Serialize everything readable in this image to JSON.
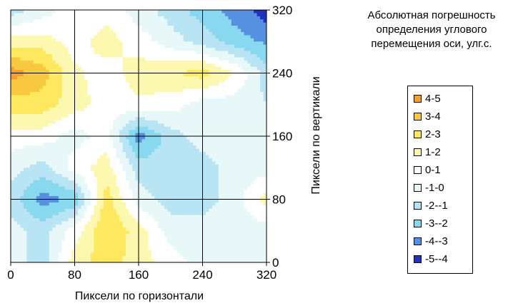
{
  "chart_data": {
    "type": "heatmap",
    "subtype": "contour",
    "title": "Абсолютная погрешность определения углового перемещения оси, улг.с.",
    "xlabel": "Пиксели  по горизонтали",
    "ylabel": "Пиксели  по вертикали",
    "x": [
      0,
      40,
      80,
      120,
      160,
      200,
      240,
      280,
      320
    ],
    "y": [
      0,
      40,
      80,
      120,
      160,
      200,
      240,
      280,
      320
    ],
    "x_ticks": [
      "0",
      "80",
      "160",
      "240",
      "320"
    ],
    "y_ticks": [
      "0",
      "80",
      "160",
      "240",
      "320"
    ],
    "xlim": [
      0,
      320
    ],
    "ylim": [
      0,
      320
    ],
    "grid": true,
    "legend_position": "right",
    "z_rows_top_to_bottom": [
      [
        -1.5,
        -0.5,
        0.5,
        0.5,
        -0.5,
        -1.5,
        -2.5,
        -3.5,
        -4.5
      ],
      [
        1.5,
        1.5,
        0.5,
        1.5,
        0.5,
        -0.5,
        -1.5,
        -2.5,
        -3.2
      ],
      [
        4.5,
        3.5,
        1.2,
        0.5,
        1.5,
        1.8,
        2.5,
        1.0,
        -1.5
      ],
      [
        2.5,
        2.5,
        1.5,
        0.5,
        0.8,
        0.5,
        -0.5,
        -0.5,
        -1.0
      ],
      [
        0.5,
        0.5,
        -0.5,
        0.5,
        -3.5,
        -1.5,
        -0.5,
        -0.5,
        -0.5
      ],
      [
        -0.5,
        -1.5,
        0.5,
        1.5,
        -1.5,
        -1.5,
        -1.5,
        -0.5,
        -0.5
      ],
      [
        -1.5,
        -3.5,
        -2.8,
        2.5,
        -0.5,
        -1.5,
        -1.5,
        -0.5,
        1.5
      ],
      [
        -0.5,
        -1.5,
        0.5,
        3.0,
        1.5,
        -0.5,
        -0.5,
        -0.5,
        -0.5
      ],
      [
        -0.5,
        -1.5,
        1.5,
        2.5,
        1.5,
        0.5,
        -0.5,
        -0.5,
        -0.5
      ]
    ],
    "levels": [
      {
        "label": "4-5",
        "min": 4,
        "max": 5,
        "color": "#f0a030"
      },
      {
        "label": "3-4",
        "min": 3,
        "max": 4,
        "color": "#f8c840"
      },
      {
        "label": "2-3",
        "min": 2,
        "max": 3,
        "color": "#fde860"
      },
      {
        "label": "1-2",
        "min": 1,
        "max": 2,
        "color": "#fdf8b0"
      },
      {
        "label": "0-1",
        "min": 0,
        "max": 1,
        "color": "#ffffff"
      },
      {
        "label": "-1-0",
        "min": -1,
        "max": 0,
        "color": "#e8f8f8"
      },
      {
        "label": "-2--1",
        "min": -2,
        "max": -1,
        "color": "#b8e4f4"
      },
      {
        "label": "-3--2",
        "min": -3,
        "max": -2,
        "color": "#88d8f0"
      },
      {
        "label": "-4--3",
        "min": -4,
        "max": -3,
        "color": "#5890e0"
      },
      {
        "label": "-5--4",
        "min": -5,
        "max": -4,
        "color": "#2030c0"
      }
    ]
  }
}
